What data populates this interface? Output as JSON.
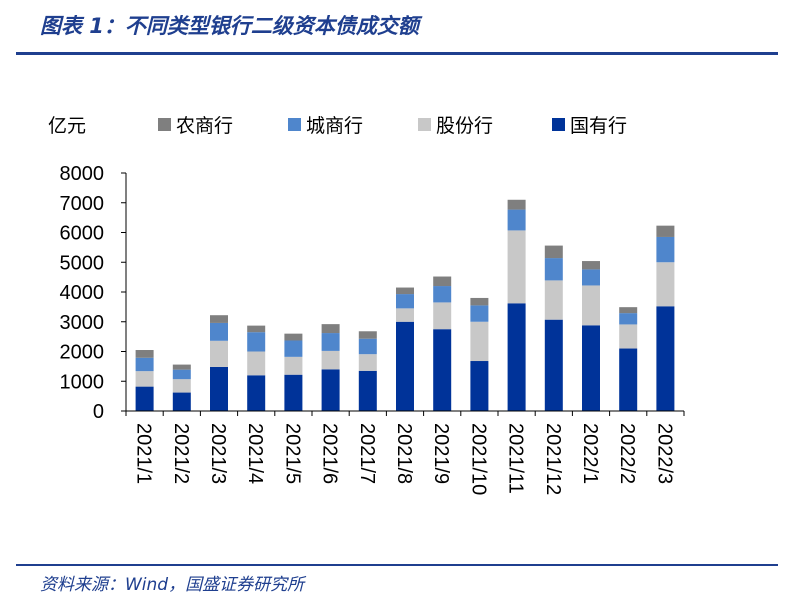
{
  "header": {
    "title": "图表 1：不同类型银行二级资本债成交额"
  },
  "footer": {
    "source": "资料来源：Wind，国盛证券研究所"
  },
  "chart_data": {
    "type": "bar",
    "stacked": true,
    "unit_label": "亿元",
    "categories": [
      "2021/1",
      "2021/2",
      "2021/3",
      "2021/4",
      "2021/5",
      "2021/6",
      "2021/7",
      "2021/8",
      "2021/9",
      "2021/10",
      "2021/11",
      "2021/12",
      "2022/1",
      "2022/2",
      "2022/3"
    ],
    "series": [
      {
        "name": "国有行",
        "color": "#003399",
        "values": [
          820,
          620,
          1480,
          1200,
          1220,
          1400,
          1350,
          3000,
          2750,
          1680,
          3620,
          3070,
          2880,
          2100,
          3520
        ]
      },
      {
        "name": "股份行",
        "color": "#c8c8c8",
        "values": [
          520,
          450,
          880,
          800,
          600,
          620,
          560,
          450,
          900,
          1320,
          2450,
          1320,
          1340,
          810,
          1480
        ]
      },
      {
        "name": "城商行",
        "color": "#4f86cc",
        "values": [
          450,
          320,
          600,
          650,
          550,
          600,
          520,
          480,
          550,
          550,
          700,
          750,
          540,
          380,
          850
        ]
      },
      {
        "name": "农商行",
        "color": "#7f7f7f",
        "values": [
          260,
          170,
          260,
          220,
          230,
          300,
          250,
          220,
          320,
          250,
          330,
          420,
          280,
          200,
          380
        ]
      }
    ],
    "legend_order": [
      "农商行",
      "城商行",
      "股份行",
      "国有行"
    ],
    "ylim": [
      0,
      8000
    ],
    "yticks": [
      0,
      1000,
      2000,
      3000,
      4000,
      5000,
      6000,
      7000,
      8000
    ],
    "legend_position": "top",
    "grid": false
  }
}
